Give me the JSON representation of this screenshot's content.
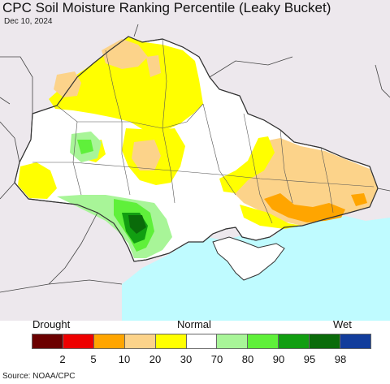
{
  "title": "CPC Soil Moisture Ranking Percentile (Leaky Bucket)",
  "date": "Dec 10, 2024",
  "legend": {
    "left_label": "Drought",
    "center_label": "Normal",
    "right_label": "Wet",
    "colors": [
      "#6b0000",
      "#ee0000",
      "#ffa500",
      "#fcd38a",
      "#ffff00",
      "#ffffff",
      "#a8f598",
      "#5ff03a",
      "#119e11",
      "#0a6b0a",
      "#123d9c"
    ],
    "ticks": [
      "2",
      "5",
      "10",
      "20",
      "30",
      "70",
      "80",
      "90",
      "95",
      "98"
    ]
  },
  "source": "Source: NOAA/CPC",
  "map": {
    "background_land": "#ede8ed",
    "sea_color": "#bffbff",
    "regions": [
      "Ukraine",
      "Black Sea",
      "Sea of Azov",
      "Crimea"
    ]
  }
}
